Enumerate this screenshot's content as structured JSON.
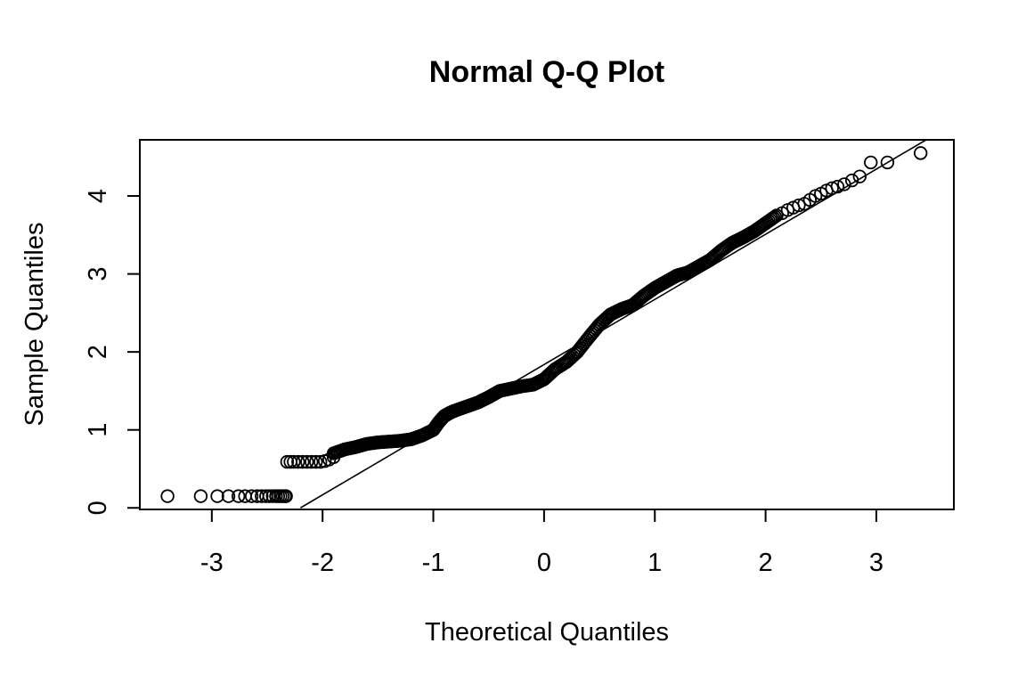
{
  "chart_data": {
    "type": "scatter",
    "title": "Normal Q-Q Plot",
    "xlabel": "Theoretical Quantiles",
    "ylabel": "Sample Quantiles",
    "xlim": [
      -3.65,
      3.7
    ],
    "ylim": [
      -0.02,
      4.72
    ],
    "xticks": [
      -3,
      -2,
      -1,
      0,
      1,
      2,
      3
    ],
    "yticks": [
      0,
      1,
      2,
      3,
      4
    ],
    "xtick_labels": [
      "-3",
      "-2",
      "-1",
      "0",
      "1",
      "2",
      "3"
    ],
    "ytick_labels": [
      "0",
      "1",
      "2",
      "3",
      "4"
    ],
    "grid": false,
    "legend": "none",
    "reference_line": {
      "x": [
        -2.2,
        3.45
      ],
      "y": [
        0.0,
        4.72
      ]
    },
    "point_groups": [
      {
        "name": "",
        "x": [
          -3.4,
          -3.1,
          -2.95,
          -2.85,
          -2.76,
          -2.7,
          -2.64,
          -2.59,
          -2.55,
          -2.51,
          -2.48,
          -2.45,
          -2.42,
          -2.4,
          -2.38,
          -2.36,
          -2.34,
          -2.33
        ],
        "y": [
          0.15,
          0.15,
          0.15,
          0.15,
          0.15,
          0.15,
          0.15,
          0.15,
          0.15,
          0.15,
          0.15,
          0.15,
          0.15,
          0.15,
          0.15,
          0.15,
          0.15,
          0.15
        ]
      },
      {
        "name": "",
        "x": [
          -2.32,
          -2.29,
          -2.26,
          -2.22,
          -2.18,
          -2.14,
          -2.1,
          -2.06,
          -2.02,
          -1.98,
          -1.94,
          -1.9
        ],
        "y": [
          0.59,
          0.59,
          0.59,
          0.59,
          0.59,
          0.59,
          0.59,
          0.59,
          0.59,
          0.6,
          0.62,
          0.65
        ]
      },
      {
        "name": "",
        "x": [
          -1.9,
          -1.8,
          -1.7,
          -1.6,
          -1.5,
          -1.4,
          -1.3,
          -1.2,
          -1.1,
          -1.0,
          -0.95,
          -0.9,
          -0.85,
          -0.8,
          -0.7,
          -0.6,
          -0.5,
          -0.4,
          -0.3,
          -0.2,
          -0.1,
          0.0,
          0.1,
          0.2,
          0.3,
          0.4,
          0.5,
          0.6,
          0.7,
          0.8,
          0.9,
          1.0,
          1.1,
          1.2,
          1.3,
          1.4,
          1.5,
          1.6,
          1.7,
          1.8,
          1.9,
          2.0,
          2.1
        ],
        "y": [
          0.7,
          0.75,
          0.78,
          0.82,
          0.84,
          0.85,
          0.86,
          0.88,
          0.93,
          1.0,
          1.1,
          1.18,
          1.22,
          1.25,
          1.3,
          1.35,
          1.42,
          1.5,
          1.53,
          1.56,
          1.58,
          1.65,
          1.78,
          1.87,
          2.0,
          2.18,
          2.35,
          2.48,
          2.55,
          2.6,
          2.72,
          2.82,
          2.9,
          2.98,
          3.02,
          3.1,
          3.18,
          3.3,
          3.4,
          3.47,
          3.55,
          3.65,
          3.75
        ]
      },
      {
        "name": "",
        "x": [
          2.15,
          2.2,
          2.25,
          2.3,
          2.35,
          2.4,
          2.45,
          2.5,
          2.55,
          2.6,
          2.65,
          2.71,
          2.78,
          2.85,
          2.95,
          3.1,
          3.4
        ],
        "y": [
          3.78,
          3.82,
          3.85,
          3.88,
          3.9,
          3.95,
          4.0,
          4.03,
          4.07,
          4.1,
          4.12,
          4.15,
          4.2,
          4.25,
          4.43,
          4.43,
          4.55
        ]
      }
    ]
  }
}
